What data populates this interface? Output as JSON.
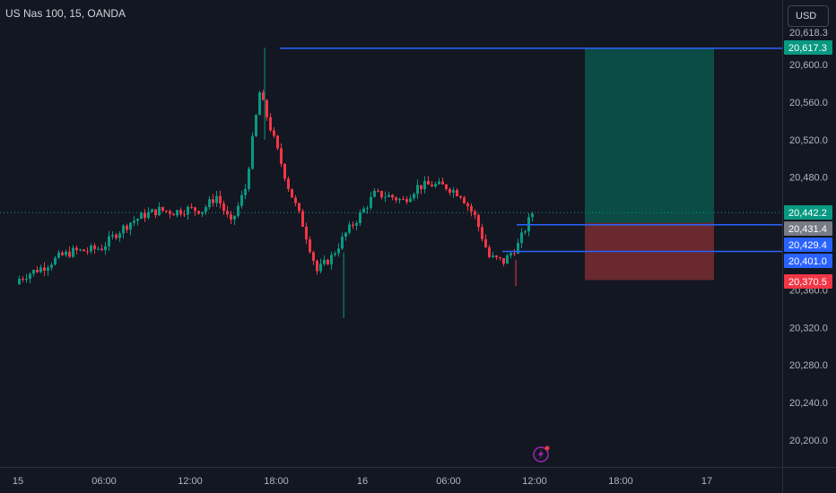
{
  "header": {
    "symbol_title": "US Nas 100, 15, OANDA",
    "currency_label": "USD"
  },
  "price_axis": {
    "ticks": [
      "20,600.0",
      "20,560.0",
      "20,520.0",
      "20,480.0",
      "20,360.0",
      "20,320.0",
      "20,280.0",
      "20,240.0",
      "20,200.0"
    ],
    "tick_values": [
      20600,
      20560,
      20520,
      20480,
      20360,
      20320,
      20280,
      20240,
      20200
    ],
    "partial_top_label": "20,618.3"
  },
  "time_axis": {
    "labels": [
      "15",
      "06:00",
      "12:00",
      "18:00",
      "16",
      "06:00",
      "12:00",
      "18:00",
      "17"
    ],
    "label_x": [
      0,
      6,
      12,
      18,
      24,
      30,
      36,
      42,
      48
    ]
  },
  "price_tags": [
    {
      "name": "target-price-tag",
      "label": "20,617.3",
      "value": 20617.3,
      "color": "#089981"
    },
    {
      "name": "current-price-tag",
      "label": "20,442.2",
      "value": 20442.2,
      "color": "#089981"
    },
    {
      "name": "entry-price-tag",
      "label": "20,431.4",
      "value": 20431.4,
      "color": "#787b86"
    },
    {
      "name": "level-price-tag",
      "label": "20,429.4",
      "value": 20429.4,
      "color": "#2962ff"
    },
    {
      "name": "support-price-tag",
      "label": "20,401.0",
      "value": 20401.0,
      "color": "#2962ff"
    },
    {
      "name": "stop-price-tag",
      "label": "20,370.5",
      "value": 20370.5,
      "color": "#f23645"
    }
  ],
  "colors": {
    "up": "#089981",
    "down": "#f23645",
    "line": "#2962ff",
    "profit": "#0b4f4a",
    "loss": "#6e2a30"
  },
  "icons": {
    "replay": "lightning-alert-icon"
  },
  "chart_data": {
    "type": "candlestick",
    "symbol": "US Nas 100",
    "interval": "15",
    "source": "OANDA",
    "currency": "USD",
    "ylim": [
      20190,
      20640
    ],
    "x_unit": "hours since 15 00:00",
    "current_price": 20442.2,
    "position": {
      "direction": "long",
      "entry": 20431.4,
      "target": 20617.3,
      "stop": 20370.5,
      "x_start": 39.5,
      "x_end": 48.5
    },
    "horizontal_lines": [
      {
        "price": 20617.3,
        "x_start": 18.25
      },
      {
        "price": 20429.4,
        "x_start": 34.75
      },
      {
        "price": 20401.0,
        "x_start": 33.75
      }
    ],
    "candles_hourly_close": [
      {
        "h": 0,
        "close": 20370
      },
      {
        "h": 1,
        "close": 20378
      },
      {
        "h": 2,
        "close": 20385
      },
      {
        "h": 3,
        "close": 20395
      },
      {
        "h": 4,
        "close": 20401
      },
      {
        "h": 5,
        "close": 20402
      },
      {
        "h": 6,
        "close": 20405
      },
      {
        "h": 7,
        "close": 20420
      },
      {
        "h": 8,
        "close": 20432
      },
      {
        "h": 9,
        "close": 20440
      },
      {
        "h": 10,
        "close": 20445
      },
      {
        "h": 11,
        "close": 20443
      },
      {
        "h": 12,
        "close": 20446
      },
      {
        "h": 13,
        "close": 20445
      },
      {
        "h": 14,
        "close": 20460
      },
      {
        "h": 15,
        "close": 20430
      },
      {
        "h": 16,
        "close": 20468
      },
      {
        "h": 17,
        "close": 20570
      },
      {
        "h": 18,
        "close": 20520
      },
      {
        "h": 19,
        "close": 20470
      },
      {
        "h": 20,
        "close": 20430
      },
      {
        "h": 21,
        "close": 20380
      },
      {
        "h": 22,
        "close": 20395
      },
      {
        "h": 23,
        "close": 20420
      },
      {
        "h": 24,
        "close": 20440
      },
      {
        "h": 25,
        "close": 20462
      },
      {
        "h": 26,
        "close": 20460
      },
      {
        "h": 27,
        "close": 20455
      },
      {
        "h": 28,
        "close": 20470
      },
      {
        "h": 29,
        "close": 20472
      },
      {
        "h": 30,
        "close": 20470
      },
      {
        "h": 31,
        "close": 20462
      },
      {
        "h": 32,
        "close": 20438
      },
      {
        "h": 33,
        "close": 20395
      },
      {
        "h": 34,
        "close": 20390
      },
      {
        "h": 35,
        "close": 20408
      },
      {
        "h": 36,
        "close": 20442
      }
    ]
  }
}
